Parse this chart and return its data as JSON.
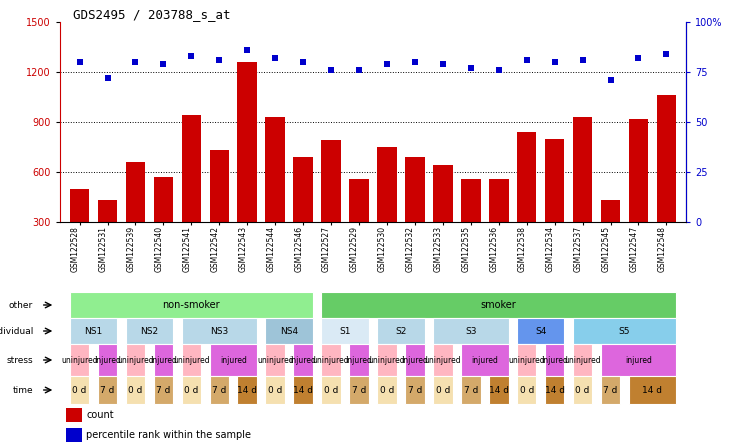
{
  "title": "GDS2495 / 203788_s_at",
  "samples": [
    "GSM122528",
    "GSM122531",
    "GSM122539",
    "GSM122540",
    "GSM122541",
    "GSM122542",
    "GSM122543",
    "GSM122544",
    "GSM122546",
    "GSM122527",
    "GSM122529",
    "GSM122530",
    "GSM122532",
    "GSM122533",
    "GSM122535",
    "GSM122536",
    "GSM122538",
    "GSM122534",
    "GSM122537",
    "GSM122545",
    "GSM122547",
    "GSM122548"
  ],
  "counts": [
    500,
    430,
    660,
    570,
    940,
    730,
    1260,
    930,
    690,
    790,
    560,
    750,
    690,
    640,
    560,
    560,
    840,
    800,
    930,
    430,
    920,
    1060
  ],
  "pct_ranks": [
    80,
    72,
    80,
    79,
    83,
    81,
    86,
    82,
    80,
    76,
    76,
    79,
    80,
    79,
    77,
    76,
    81,
    80,
    81,
    71,
    82,
    84
  ],
  "bar_color": "#cc0000",
  "dot_color": "#0000cc",
  "ylim_left": [
    300,
    1500
  ],
  "ylim_right": [
    0,
    100
  ],
  "yticks_left": [
    300,
    600,
    900,
    1200,
    1500
  ],
  "yticks_right": [
    0,
    25,
    50,
    75,
    100
  ],
  "hlines": [
    600,
    900,
    1200
  ],
  "other_groups": [
    {
      "text": "non-smoker",
      "start": 0,
      "end": 8,
      "color": "#90ee90"
    },
    {
      "text": "smoker",
      "start": 9,
      "end": 21,
      "color": "#66cc66"
    }
  ],
  "individual_groups": [
    {
      "text": "NS1",
      "start": 0,
      "end": 1,
      "color": "#b8d8e8"
    },
    {
      "text": "NS2",
      "start": 2,
      "end": 3,
      "color": "#b8d8e8"
    },
    {
      "text": "NS3",
      "start": 4,
      "end": 6,
      "color": "#b8d8e8"
    },
    {
      "text": "NS4",
      "start": 7,
      "end": 8,
      "color": "#9ec4d8"
    },
    {
      "text": "S1",
      "start": 9,
      "end": 10,
      "color": "#daeaf5"
    },
    {
      "text": "S2",
      "start": 11,
      "end": 12,
      "color": "#b8d8e8"
    },
    {
      "text": "S3",
      "start": 13,
      "end": 15,
      "color": "#b8d8e8"
    },
    {
      "text": "S4",
      "start": 16,
      "end": 17,
      "color": "#6495ed"
    },
    {
      "text": "S5",
      "start": 18,
      "end": 21,
      "color": "#87ceeb"
    }
  ],
  "stress_groups": [
    {
      "text": "uninjured",
      "start": 0,
      "end": 0,
      "color": "#ffb6c1"
    },
    {
      "text": "injured",
      "start": 1,
      "end": 1,
      "color": "#dd66dd"
    },
    {
      "text": "uninjured",
      "start": 2,
      "end": 2,
      "color": "#ffb6c1"
    },
    {
      "text": "injured",
      "start": 3,
      "end": 3,
      "color": "#dd66dd"
    },
    {
      "text": "uninjured",
      "start": 4,
      "end": 4,
      "color": "#ffb6c1"
    },
    {
      "text": "injured",
      "start": 5,
      "end": 6,
      "color": "#dd66dd"
    },
    {
      "text": "uninjured",
      "start": 7,
      "end": 7,
      "color": "#ffb6c1"
    },
    {
      "text": "injured",
      "start": 8,
      "end": 8,
      "color": "#dd66dd"
    },
    {
      "text": "uninjured",
      "start": 9,
      "end": 9,
      "color": "#ffb6c1"
    },
    {
      "text": "injured",
      "start": 10,
      "end": 10,
      "color": "#dd66dd"
    },
    {
      "text": "uninjured",
      "start": 11,
      "end": 11,
      "color": "#ffb6c1"
    },
    {
      "text": "injured",
      "start": 12,
      "end": 12,
      "color": "#dd66dd"
    },
    {
      "text": "uninjured",
      "start": 13,
      "end": 13,
      "color": "#ffb6c1"
    },
    {
      "text": "injured",
      "start": 14,
      "end": 15,
      "color": "#dd66dd"
    },
    {
      "text": "uninjured",
      "start": 16,
      "end": 16,
      "color": "#ffb6c1"
    },
    {
      "text": "injured",
      "start": 17,
      "end": 17,
      "color": "#dd66dd"
    },
    {
      "text": "uninjured",
      "start": 18,
      "end": 18,
      "color": "#ffb6c1"
    },
    {
      "text": "injured",
      "start": 19,
      "end": 21,
      "color": "#dd66dd"
    }
  ],
  "time_groups": [
    {
      "text": "0 d",
      "start": 0,
      "end": 0,
      "color": "#f5e0b0"
    },
    {
      "text": "7 d",
      "start": 1,
      "end": 1,
      "color": "#d4a96a"
    },
    {
      "text": "0 d",
      "start": 2,
      "end": 2,
      "color": "#f5e0b0"
    },
    {
      "text": "7 d",
      "start": 3,
      "end": 3,
      "color": "#d4a96a"
    },
    {
      "text": "0 d",
      "start": 4,
      "end": 4,
      "color": "#f5e0b0"
    },
    {
      "text": "7 d",
      "start": 5,
      "end": 5,
      "color": "#d4a96a"
    },
    {
      "text": "14 d",
      "start": 6,
      "end": 6,
      "color": "#c08030"
    },
    {
      "text": "0 d",
      "start": 7,
      "end": 7,
      "color": "#f5e0b0"
    },
    {
      "text": "14 d",
      "start": 8,
      "end": 8,
      "color": "#c08030"
    },
    {
      "text": "0 d",
      "start": 9,
      "end": 9,
      "color": "#f5e0b0"
    },
    {
      "text": "7 d",
      "start": 10,
      "end": 10,
      "color": "#d4a96a"
    },
    {
      "text": "0 d",
      "start": 11,
      "end": 11,
      "color": "#f5e0b0"
    },
    {
      "text": "7 d",
      "start": 12,
      "end": 12,
      "color": "#d4a96a"
    },
    {
      "text": "0 d",
      "start": 13,
      "end": 13,
      "color": "#f5e0b0"
    },
    {
      "text": "7 d",
      "start": 14,
      "end": 14,
      "color": "#d4a96a"
    },
    {
      "text": "14 d",
      "start": 15,
      "end": 15,
      "color": "#c08030"
    },
    {
      "text": "0 d",
      "start": 16,
      "end": 16,
      "color": "#f5e0b0"
    },
    {
      "text": "14 d",
      "start": 17,
      "end": 17,
      "color": "#c08030"
    },
    {
      "text": "0 d",
      "start": 18,
      "end": 18,
      "color": "#f5e0b0"
    },
    {
      "text": "7 d",
      "start": 19,
      "end": 19,
      "color": "#d4a96a"
    },
    {
      "text": "14 d",
      "start": 20,
      "end": 21,
      "color": "#c08030"
    }
  ],
  "row_labels": [
    "other",
    "individual",
    "stress",
    "time"
  ],
  "background_color": "#ffffff"
}
